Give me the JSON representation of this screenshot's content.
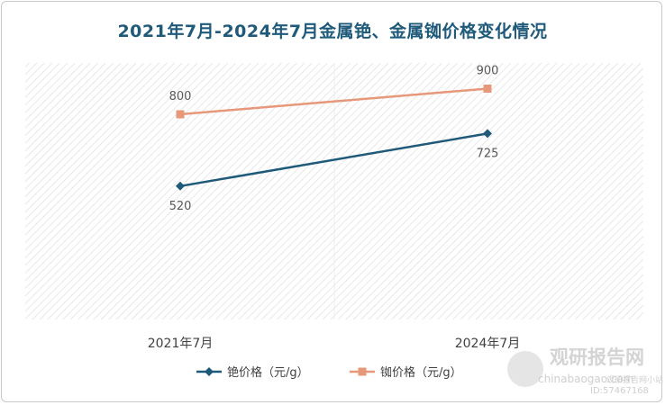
{
  "chart_data": {
    "type": "line",
    "title": "2021年7月-2024年7月金属铯、金属铷价格变化情况",
    "categories": [
      "2021年7月",
      "2024年7月"
    ],
    "series": [
      {
        "name": "铯价格（元/g）",
        "values": [
          520,
          725
        ],
        "color": "#1f5a7a",
        "marker": "diamond",
        "label_position": "below"
      },
      {
        "name": "铷价格（元/g）",
        "values": [
          800,
          900
        ],
        "color": "#e8987a",
        "marker": "square",
        "label_position": "above"
      }
    ],
    "ylim": [
      0,
      1000
    ],
    "grid": false,
    "legend_position": "bottom"
  },
  "watermark": {
    "brand": "观研报告网",
    "site": "chinabaogao.com",
    "id_text": "ID:57467168",
    "account": "观研报告网小站"
  }
}
